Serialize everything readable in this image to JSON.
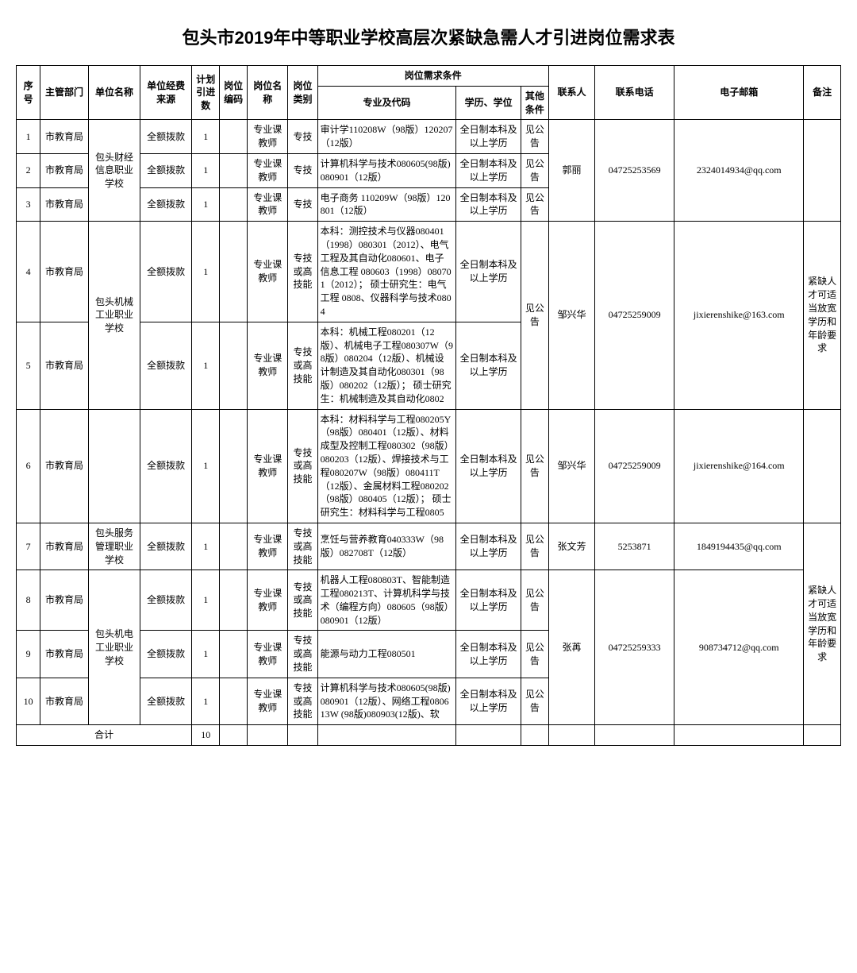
{
  "title": "包头市2019年中等职业学校高层次紧缺急需人才引进岗位需求表",
  "headers": {
    "seq": "序号",
    "dept": "主管部门",
    "unit": "单位名称",
    "fund": "单位经费来源",
    "plan": "计划引进数",
    "code": "岗位编码",
    "posname": "岗位名称",
    "postype": "岗位类别",
    "reqGroup": "岗位需求条件",
    "major": "专业及代码",
    "edu": "学历、学位",
    "other": "其他条件",
    "contact": "联系人",
    "phone": "联系电话",
    "email": "电子邮箱",
    "remark": "备注"
  },
  "rows": [
    {
      "seq": "1",
      "dept": "市教育局",
      "fund": "全额拨款",
      "plan": "1",
      "posname": "专业课教师",
      "postype": "专技",
      "major": "审计学110208W（98版）120207（12版）",
      "edu": "全日制本科及以上学历",
      "other": "见公告"
    },
    {
      "seq": "2",
      "dept": "市教育局",
      "fund": "全额拨款",
      "plan": "1",
      "posname": "专业课教师",
      "postype": "专技",
      "major": "计算机科学与技术080605(98版) 080901（12版）",
      "edu": "全日制本科及以上学历",
      "other": "见公告"
    },
    {
      "seq": "3",
      "dept": "市教育局",
      "fund": "全额拨款",
      "plan": "1",
      "posname": "专业课教师",
      "postype": "专技",
      "major": "电子商务 110209W（98版）120801（12版）",
      "edu": "全日制本科及以上学历",
      "other": "见公告"
    },
    {
      "seq": "4",
      "dept": "市教育局",
      "fund": "全额拨款",
      "plan": "1",
      "posname": "专业课教师",
      "postype": "专技或高技能",
      "major": "本科：测控技术与仪器080401（1998）080301（2012）、电气工程及其自动化080601、电子信息工程 080603（1998）080701（2012）； 硕士研究生：电气工程 0808、仪器科学与技术0804",
      "edu": "全日制本科及以上学历"
    },
    {
      "seq": "5",
      "dept": "市教育局",
      "fund": "全额拨款",
      "plan": "1",
      "posname": "专业课教师",
      "postype": "专技或高技能",
      "major": "本科：机械工程080201（12版）、机械电子工程080307W（98版）080204（12版）、机械设计制造及其自动化080301（98版）080202（12版）；\n硕士研究生：机械制造及其自动化0802",
      "edu": "全日制本科及以上学历"
    },
    {
      "seq": "6",
      "dept": "市教育局",
      "fund": "全额拨款",
      "plan": "1",
      "posname": "专业课教师",
      "postype": "专技或高技能",
      "major": "本科：材料科学与工程080205Y（98版）080401（12版）、材料成型及控制工程080302（98版）080203（12版）、焊接技术与工程080207W（98版）080411T（12版）、金属材料工程080202（98版）080405（12版）；\n硕士研究生：材料科学与工程0805",
      "edu": "全日制本科及以上学历",
      "other": "见公告"
    },
    {
      "seq": "7",
      "dept": "市教育局",
      "fund": "全额拨款",
      "plan": "1",
      "posname": "专业课教师",
      "postype": "专技或高技能",
      "major": "烹饪与营养教育040333W（98版）082708T（12版）",
      "edu": "全日制本科及以上学历",
      "other": "见公告"
    },
    {
      "seq": "8",
      "dept": "市教育局",
      "fund": "全额拨款",
      "plan": "1",
      "posname": "专业课教师",
      "postype": "专技或高技能",
      "major": "机器人工程080803T、智能制造工程080213T、计算机科学与技术（编程方向）080605（98版）080901（12版）",
      "edu": "全日制本科及以上学历",
      "other": "见公告"
    },
    {
      "seq": "9",
      "dept": "市教育局",
      "fund": "全额拨款",
      "plan": "1",
      "posname": "专业课教师",
      "postype": "专技或高技能",
      "major": "能源与动力工程080501",
      "edu": "全日制本科及以上学历",
      "other": "见公告"
    },
    {
      "seq": "10",
      "dept": "市教育局",
      "fund": "全额拨款",
      "plan": "1",
      "posname": "专业课教师",
      "postype": "专技或高技能",
      "major": "计算机科学与技术080605(98版) 080901（12版）、网络工程080613W (98版)080903(12版)、软",
      "edu": "全日制本科及以上学历",
      "other": "见公告"
    }
  ],
  "units": {
    "u1": "包头财经信息职业学校",
    "u2": "包头机械工业职业学校",
    "u3": "包头服务管理职业学校",
    "u4": "包头机电工业职业学校"
  },
  "contacts": {
    "c1": {
      "name": "郭丽",
      "phone": "04725253569",
      "email": "2324014934@qq.com"
    },
    "c2": {
      "name": "邹兴华",
      "phone": "04725259009",
      "email": "jixierenshike@163.com"
    },
    "c3": {
      "name": "邹兴华",
      "phone": "04725259009",
      "email": "jixierenshike@164.com"
    },
    "c4": {
      "name": "张文芳",
      "phone": "5253871",
      "email": "1849194435@qq.com"
    },
    "c5": {
      "name": "张苒",
      "phone": "04725259333",
      "email": "908734712@qq.com"
    }
  },
  "remarks": {
    "r1": "紧缺人才可适当放宽学历和年龄要求",
    "r2": "紧缺人才可适当放宽学历和年龄要求"
  },
  "shared": {
    "other45": "见公告"
  },
  "footer": {
    "total_label": "合计",
    "total_plan": "10"
  }
}
